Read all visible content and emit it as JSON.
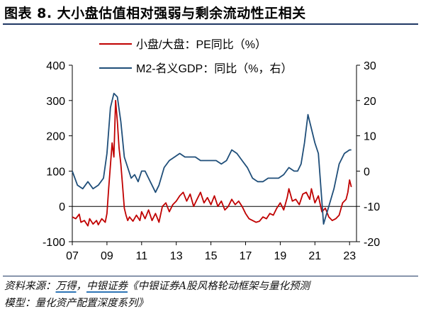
{
  "figure": {
    "title": "图表 8. 大小盘估值相对强弱与剩余流动性正相关"
  },
  "source": {
    "line1_prefix": "资料来源：",
    "link1": "万得",
    "sep": "，",
    "link2": "中银证券",
    "line1_suffix": "《中银证券A股风格轮动框架与量化预测",
    "line2": "模型：量化资产配置深度系列》"
  },
  "colors": {
    "pe_series": "#c00000",
    "gdp_series": "#1f4e79",
    "axis": "#000000",
    "title_rule": "#1f3864",
    "link_underline": "#2e75b6"
  },
  "chart_data": {
    "type": "line",
    "title": "",
    "xlabel": "",
    "ylabel": "",
    "x_range": [
      2007,
      2023.4
    ],
    "x_ticks": [
      2007,
      2009,
      2011,
      2013,
      2015,
      2017,
      2019,
      2021,
      2023
    ],
    "x_tick_labels": [
      "07",
      "09",
      "11",
      "13",
      "15",
      "17",
      "19",
      "21",
      "23"
    ],
    "y_left": {
      "range": [
        -100,
        400
      ],
      "ticks": [
        -100,
        0,
        100,
        200,
        300,
        400
      ],
      "tick_labels": [
        "-100",
        "0",
        "100",
        "200",
        "300",
        "400"
      ]
    },
    "y_right": {
      "range": [
        -20,
        30
      ],
      "ticks": [
        -20,
        -10,
        0,
        10,
        20,
        30
      ],
      "tick_labels": [
        "-20",
        "-10",
        "0",
        "10",
        "20",
        "30"
      ]
    },
    "grid": false,
    "legend_position": "top-center",
    "series": [
      {
        "name": "小盘/大盘：PE同比（%）",
        "axis": "left",
        "x": [
          2007.0,
          2007.2,
          2007.4,
          2007.5,
          2007.7,
          2007.9,
          2008.0,
          2008.2,
          2008.4,
          2008.5,
          2008.7,
          2008.9,
          2009.0,
          2009.1,
          2009.3,
          2009.4,
          2009.5,
          2009.6,
          2009.7,
          2009.8,
          2009.9,
          2010.0,
          2010.1,
          2010.2,
          2010.3,
          2010.5,
          2010.7,
          2010.9,
          2011.0,
          2011.2,
          2011.4,
          2011.6,
          2011.8,
          2012.0,
          2012.2,
          2012.4,
          2012.6,
          2012.8,
          2013.0,
          2013.2,
          2013.4,
          2013.6,
          2013.8,
          2014.0,
          2014.2,
          2014.4,
          2014.6,
          2014.8,
          2015.0,
          2015.2,
          2015.4,
          2015.6,
          2015.8,
          2016.0,
          2016.2,
          2016.4,
          2016.6,
          2016.8,
          2017.0,
          2017.2,
          2017.4,
          2017.6,
          2017.8,
          2018.0,
          2018.2,
          2018.4,
          2018.6,
          2018.8,
          2019.0,
          2019.2,
          2019.4,
          2019.5,
          2019.7,
          2019.9,
          2020.1,
          2020.3,
          2020.5,
          2020.7,
          2020.8,
          2021.0,
          2021.2,
          2021.4,
          2021.6,
          2021.8,
          2022.0,
          2022.2,
          2022.4,
          2022.6,
          2022.8,
          2022.9,
          2023.0,
          2023.1
        ],
        "y": [
          -30,
          -35,
          -22,
          -45,
          -40,
          -55,
          -35,
          -50,
          -40,
          -52,
          -35,
          -45,
          -20,
          50,
          180,
          140,
          300,
          240,
          165,
          120,
          60,
          -5,
          -25,
          -40,
          -30,
          -42,
          -25,
          -40,
          -15,
          -35,
          -10,
          -40,
          -20,
          -45,
          0,
          10,
          -15,
          5,
          15,
          30,
          40,
          15,
          35,
          0,
          20,
          40,
          10,
          25,
          5,
          30,
          0,
          15,
          -10,
          0,
          20,
          5,
          15,
          0,
          -20,
          -35,
          -40,
          -45,
          -42,
          -30,
          -35,
          -20,
          -25,
          -5,
          10,
          -10,
          25,
          50,
          15,
          20,
          5,
          35,
          40,
          20,
          50,
          10,
          30,
          -15,
          -5,
          -30,
          -40,
          -35,
          -25,
          10,
          20,
          40,
          75,
          55
        ]
      },
      {
        "name": "M2-名义GDP：同比（%，右）",
        "axis": "right",
        "x": [
          2007.0,
          2007.3,
          2007.6,
          2007.9,
          2008.2,
          2008.5,
          2008.8,
          2009.0,
          2009.2,
          2009.4,
          2009.6,
          2009.8,
          2010.0,
          2010.2,
          2010.4,
          2010.6,
          2010.8,
          2011.0,
          2011.2,
          2011.4,
          2011.6,
          2011.8,
          2012.0,
          2012.3,
          2012.6,
          2012.9,
          2013.2,
          2013.5,
          2013.8,
          2014.1,
          2014.4,
          2014.7,
          2015.0,
          2015.3,
          2015.6,
          2015.9,
          2016.2,
          2016.5,
          2016.8,
          2017.1,
          2017.4,
          2017.7,
          2018.0,
          2018.3,
          2018.6,
          2018.9,
          2019.2,
          2019.5,
          2019.8,
          2020.0,
          2020.2,
          2020.4,
          2020.6,
          2020.8,
          2021.0,
          2021.2,
          2021.5,
          2021.8,
          2022.1,
          2022.4,
          2022.7,
          2023.0,
          2023.1
        ],
        "y": [
          0,
          -4,
          -5,
          -3,
          -5,
          -4,
          -2,
          5,
          18,
          22,
          21,
          14,
          4,
          1,
          -2,
          -1,
          -3,
          0,
          0,
          -2,
          -4,
          -6,
          -4,
          1,
          3,
          4,
          5,
          4,
          4,
          4,
          3,
          3,
          3,
          3,
          2,
          3,
          6,
          5,
          3,
          1,
          -2,
          -3,
          -3,
          -2,
          -2,
          -2,
          -1,
          1,
          0,
          0,
          2,
          8,
          16,
          12,
          8,
          5,
          -15,
          -10,
          -5,
          2,
          5,
          6,
          6
        ]
      }
    ]
  }
}
